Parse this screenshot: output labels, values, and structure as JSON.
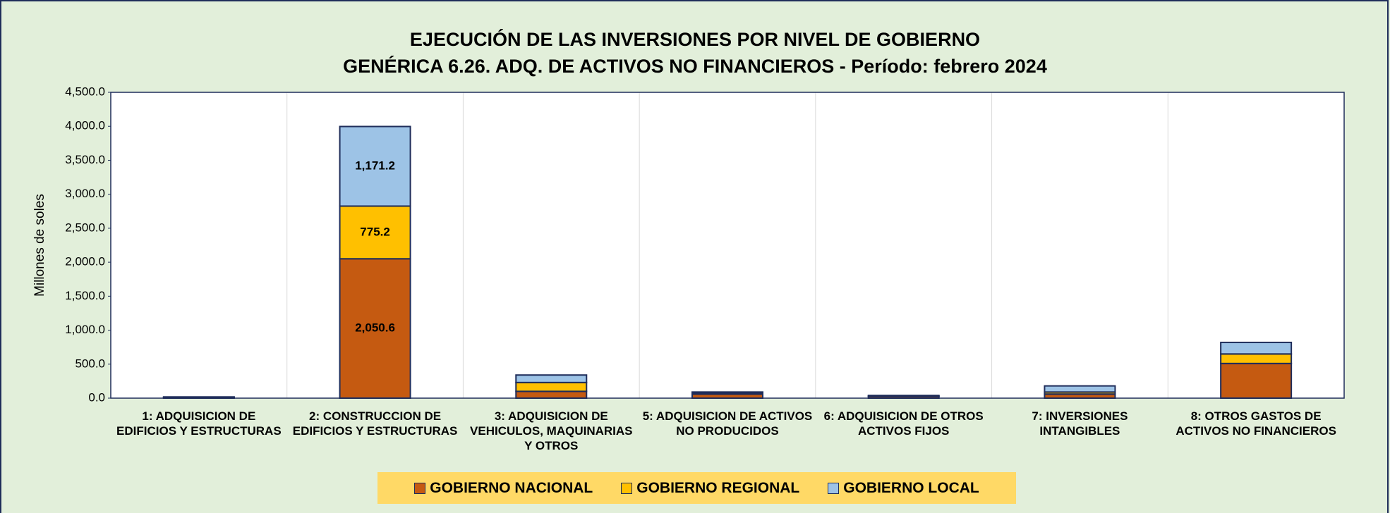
{
  "chart_data": {
    "type": "stacked_bar",
    "title": "EJECUCIÓN DE LAS INVERSIONES POR NIVEL DE GOBIERNO",
    "subtitle": "GENÉRICA 6.26. ADQ. DE ACTIVOS NO FINANCIEROS - Período:  febrero 2024",
    "y_label": "Millones de soles",
    "categories": [
      "1: ADQUISICION DE EDIFICIOS Y ESTRUCTURAS",
      "2: CONSTRUCCION DE EDIFICIOS Y ESTRUCTURAS",
      "3: ADQUISICION DE VEHICULOS, MAQUINARIAS Y OTROS",
      "5: ADQUISICION DE ACTIVOS NO PRODUCIDOS",
      "6: ADQUISICION DE OTROS ACTIVOS FIJOS",
      "7: INVERSIONES INTANGIBLES",
      "8: OTROS GASTOS DE ACTIVOS NO FINANCIEROS"
    ],
    "series": [
      {
        "name": "GOBIERNO NACIONAL",
        "color": "#c55a11",
        "label_color": "#ffffff",
        "values": [
          10,
          2050.6,
          100,
          60,
          25,
          60,
          510
        ],
        "value_labels": [
          null,
          "2,050.6",
          null,
          null,
          null,
          null,
          null
        ]
      },
      {
        "name": "GOBIERNO REGIONAL",
        "color": "#ffc000",
        "label_color": "#000000",
        "values": [
          3,
          775.2,
          130,
          10,
          5,
          30,
          140
        ],
        "value_labels": [
          null,
          "775.2",
          null,
          null,
          null,
          null,
          null
        ]
      },
      {
        "name": "GOBIERNO LOCAL",
        "color": "#9dc3e6",
        "label_color": "#000000",
        "values": [
          5,
          1171.2,
          110,
          20,
          10,
          90,
          170
        ],
        "value_labels": [
          null,
          "1,171.2",
          null,
          null,
          null,
          null,
          null
        ]
      }
    ],
    "ylim": [
      0,
      4500
    ],
    "yticks": [
      {
        "value": 0,
        "label": "0.0"
      },
      {
        "value": 500,
        "label": "500.0"
      },
      {
        "value": 1000,
        "label": "1,000.0"
      },
      {
        "value": 1500,
        "label": "1,500.0"
      },
      {
        "value": 2000,
        "label": "2,000.0"
      },
      {
        "value": 2500,
        "label": "2,500.0"
      },
      {
        "value": 3000,
        "label": "3,000.0"
      },
      {
        "value": 3500,
        "label": "3,500.0"
      },
      {
        "value": 4000,
        "label": "4,000.0"
      },
      {
        "value": 4500,
        "label": "4,500.0"
      }
    ],
    "grid": false
  }
}
